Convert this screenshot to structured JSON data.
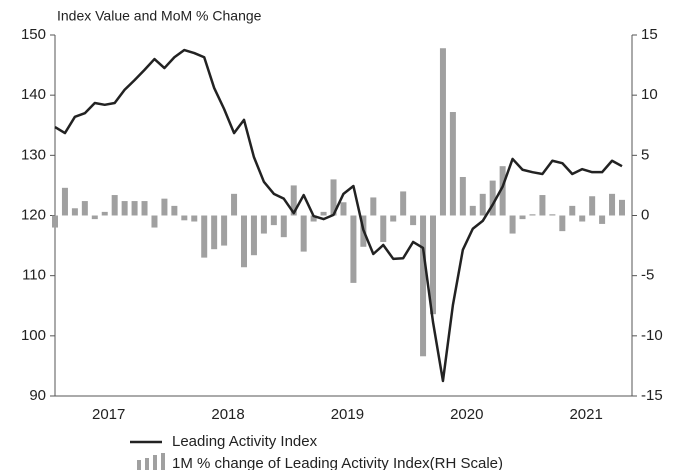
{
  "chart_data": {
    "type": "combo",
    "title": "Index Value and MoM % Change",
    "categories": [
      null,
      null,
      null,
      null,
      null,
      null,
      "2017",
      null,
      null,
      null,
      null,
      null,
      null,
      null,
      null,
      null,
      null,
      null,
      "2018",
      null,
      null,
      null,
      null,
      null,
      null,
      null,
      null,
      null,
      null,
      null,
      "2019",
      null,
      null,
      null,
      null,
      null,
      null,
      null,
      null,
      null,
      null,
      null,
      "2020",
      null,
      null,
      null,
      null,
      null,
      null,
      null,
      null,
      null,
      null,
      null,
      "2021",
      null,
      null,
      null
    ],
    "series": [
      {
        "name": "Leading Activity Index",
        "type": "line",
        "axis": "y",
        "color": "#222222",
        "values": [
          134.7,
          133.7,
          136.4,
          137,
          138.7,
          138.4,
          138.7,
          140.9,
          142.5,
          144.2,
          146,
          144.5,
          146.3,
          147.5,
          147,
          146.3,
          141.2,
          137.7,
          133.7,
          135.9,
          129.7,
          125.6,
          123.6,
          122.8,
          120.4,
          123.4,
          119.9,
          119.4,
          120.1,
          123.6,
          124.9,
          117.6,
          113.6,
          115.1,
          112.8,
          112.9,
          115.6,
          114.6,
          102.3,
          92.5,
          105.1,
          114.3,
          117.8,
          119.1,
          121.8,
          124.8,
          129.4,
          127.6,
          127.2,
          126.9,
          129.1,
          128.7,
          126.9,
          127.7,
          127.2,
          127.2,
          129.1,
          128.2
        ]
      },
      {
        "name": "1M % change of Leading Activity Index(RH Scale)",
        "type": "bar",
        "axis": "y2",
        "color": "#a0a0a0",
        "values": [
          -1,
          2.3,
          0.6,
          1.2,
          -0.3,
          0.3,
          1.7,
          1.2,
          1.2,
          1.2,
          -1,
          1.4,
          0.8,
          -0.4,
          -0.5,
          -3.5,
          -2.8,
          -2.5,
          1.8,
          -4.3,
          -3.3,
          -1.5,
          -0.8,
          -1.8,
          2.5,
          -3,
          -0.5,
          0.3,
          3,
          1.1,
          -5.6,
          -2.6,
          1.5,
          -2.2,
          -0.5,
          2,
          -0.8,
          -11.7,
          -8.2,
          13.9,
          8.6,
          3.2,
          0.8,
          1.8,
          2.9,
          4.1,
          -1.5,
          -0.3,
          0.1,
          1.7,
          0.1,
          -1.3,
          0.8,
          -0.5,
          1.6,
          -0.7,
          1.8,
          1.3
        ]
      }
    ],
    "ylim": [
      90,
      150
    ],
    "yticks": [
      90,
      100,
      110,
      120,
      130,
      140,
      150
    ],
    "y2lim": [
      -15,
      15
    ],
    "y2ticks": [
      -15,
      -10,
      -5,
      0,
      5,
      10,
      15
    ]
  }
}
